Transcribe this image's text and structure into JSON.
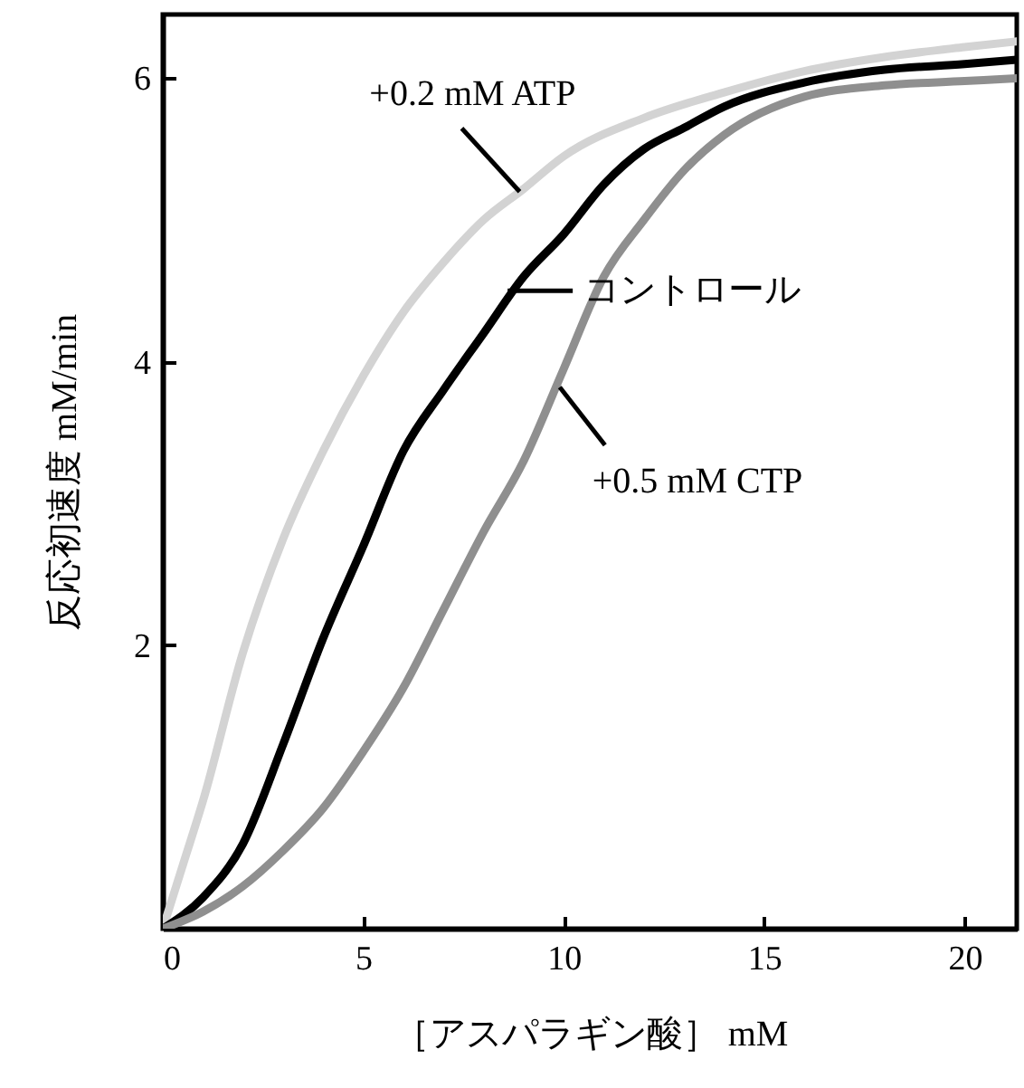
{
  "chart_data": {
    "type": "line",
    "xlabel": "［アスパラギン酸］ mM",
    "ylabel": "反応初速度 mM/min",
    "xlim": [
      0,
      21.3
    ],
    "ylim": [
      0,
      6.45
    ],
    "xticks": [
      0,
      5,
      10,
      15,
      20
    ],
    "yticks": [
      2,
      4,
      6
    ],
    "grid": false,
    "line_style": "solid",
    "series": [
      {
        "color": "#d3d3d3",
        "x": [
          0,
          0.5,
          1,
          2,
          3,
          4,
          5,
          6,
          7,
          8,
          9,
          10,
          12,
          14,
          16,
          18,
          20,
          21.3
        ],
        "values": [
          0,
          0.45,
          0.9,
          1.95,
          2.75,
          3.37,
          3.9,
          4.35,
          4.7,
          5.0,
          5.22,
          5.45,
          5.72,
          5.9,
          6.05,
          6.15,
          6.22,
          6.26
        ]
      },
      {
        "color": "#000000",
        "x": [
          0,
          1,
          2,
          3,
          4,
          5,
          6,
          7,
          8,
          9,
          10,
          11,
          12,
          13,
          14,
          16,
          18,
          20,
          21.3
        ],
        "values": [
          0,
          0.22,
          0.6,
          1.3,
          2.05,
          2.7,
          3.37,
          3.8,
          4.2,
          4.6,
          4.9,
          5.25,
          5.5,
          5.65,
          5.8,
          5.97,
          6.06,
          6.1,
          6.13
        ]
      },
      {
        "color": "#8f8f8f",
        "x": [
          0,
          1,
          2,
          3,
          4,
          5,
          6,
          7,
          8,
          9,
          10,
          11,
          12,
          13,
          14,
          16,
          18,
          20,
          21.3
        ],
        "values": [
          0,
          0.12,
          0.3,
          0.55,
          0.85,
          1.25,
          1.7,
          2.25,
          2.8,
          3.3,
          3.95,
          4.6,
          5.0,
          5.35,
          5.6,
          5.87,
          5.95,
          5.98,
          6.0
        ]
      }
    ],
    "annotations": [
      {
        "text": "+0.2 mM ATP",
        "x": 8.9,
        "y": 5.2
      },
      {
        "text": "コントロール",
        "x": 8.6,
        "y": 4.5
      },
      {
        "text": "+0.5 mM CTP",
        "x": 9.9,
        "y": 3.82
      }
    ]
  }
}
